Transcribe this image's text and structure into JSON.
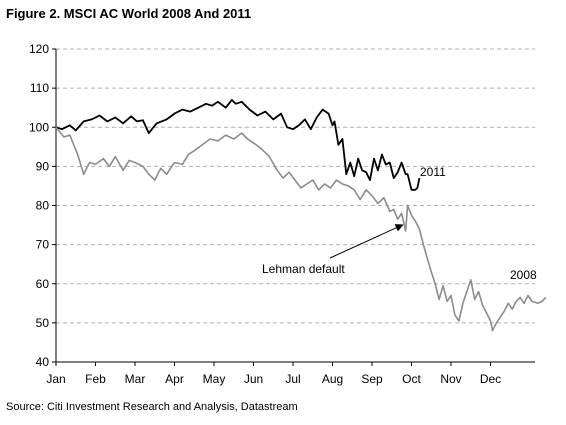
{
  "figure": {
    "title": "Figure 2. MSCI AC World 2008 And 2011",
    "source": "Source: Citi Investment Research and Analysis, Datastream"
  },
  "chart_data": {
    "type": "line",
    "title": "Figure 2. MSCI AC World 2008 And 2011",
    "xlabel": "",
    "ylabel": "",
    "x_unit": "months (Jan = 0)",
    "xlim": [
      0,
      12
    ],
    "ylim": [
      40,
      120
    ],
    "yticks": [
      40,
      50,
      60,
      70,
      80,
      90,
      100,
      110,
      120
    ],
    "xtick_labels": [
      "Jan",
      "Feb",
      "Mar",
      "Apr",
      "May",
      "Jun",
      "Jul",
      "Aug",
      "Sep",
      "Oct",
      "Nov",
      "Dec"
    ],
    "grid": "horizontal dashed",
    "legend": "none (direct labels)",
    "series": [
      {
        "name": "2011",
        "color": "#000000",
        "points": [
          [
            0.0,
            100.0
          ],
          [
            0.15,
            99.5
          ],
          [
            0.35,
            100.5
          ],
          [
            0.5,
            99.2
          ],
          [
            0.7,
            101.5
          ],
          [
            0.9,
            102.0
          ],
          [
            1.1,
            103.0
          ],
          [
            1.3,
            101.5
          ],
          [
            1.5,
            102.5
          ],
          [
            1.7,
            101.0
          ],
          [
            1.9,
            102.8
          ],
          [
            2.05,
            101.5
          ],
          [
            2.2,
            101.8
          ],
          [
            2.35,
            98.5
          ],
          [
            2.55,
            101.0
          ],
          [
            2.8,
            102.0
          ],
          [
            3.0,
            103.5
          ],
          [
            3.2,
            104.5
          ],
          [
            3.4,
            104.0
          ],
          [
            3.6,
            105.0
          ],
          [
            3.8,
            106.0
          ],
          [
            3.95,
            105.5
          ],
          [
            4.1,
            106.5
          ],
          [
            4.3,
            105.0
          ],
          [
            4.45,
            107.0
          ],
          [
            4.55,
            106.0
          ],
          [
            4.7,
            106.5
          ],
          [
            4.9,
            104.5
          ],
          [
            5.1,
            103.0
          ],
          [
            5.3,
            104.0
          ],
          [
            5.5,
            102.0
          ],
          [
            5.7,
            103.5
          ],
          [
            5.85,
            100.0
          ],
          [
            6.0,
            99.5
          ],
          [
            6.15,
            100.5
          ],
          [
            6.3,
            102.0
          ],
          [
            6.45,
            99.5
          ],
          [
            6.6,
            102.5
          ],
          [
            6.75,
            104.5
          ],
          [
            6.9,
            103.5
          ],
          [
            7.0,
            100.5
          ],
          [
            7.05,
            101.5
          ],
          [
            7.15,
            95.5
          ],
          [
            7.25,
            97.0
          ],
          [
            7.35,
            88.0
          ],
          [
            7.45,
            91.0
          ],
          [
            7.55,
            87.5
          ],
          [
            7.65,
            92.0
          ],
          [
            7.75,
            89.0
          ],
          [
            7.85,
            88.5
          ],
          [
            7.95,
            86.5
          ],
          [
            8.05,
            92.0
          ],
          [
            8.15,
            89.0
          ],
          [
            8.25,
            93.0
          ],
          [
            8.35,
            90.5
          ],
          [
            8.45,
            91.0
          ],
          [
            8.55,
            87.0
          ],
          [
            8.65,
            88.5
          ],
          [
            8.75,
            91.0
          ],
          [
            8.85,
            88.0
          ],
          [
            8.9,
            88.0
          ],
          [
            9.0,
            84.0
          ],
          [
            9.1,
            84.0
          ],
          [
            9.15,
            84.5
          ],
          [
            9.2,
            87.0
          ]
        ]
      },
      {
        "name": "2008",
        "color": "#8c8c8c",
        "points": [
          [
            0.0,
            100.0
          ],
          [
            0.2,
            97.5
          ],
          [
            0.35,
            98.0
          ],
          [
            0.55,
            93.0
          ],
          [
            0.7,
            88.0
          ],
          [
            0.85,
            91.0
          ],
          [
            1.0,
            90.5
          ],
          [
            1.2,
            92.0
          ],
          [
            1.35,
            90.0
          ],
          [
            1.5,
            92.5
          ],
          [
            1.7,
            89.0
          ],
          [
            1.85,
            91.5
          ],
          [
            2.0,
            91.0
          ],
          [
            2.2,
            90.0
          ],
          [
            2.35,
            88.0
          ],
          [
            2.5,
            86.5
          ],
          [
            2.65,
            89.5
          ],
          [
            2.8,
            88.0
          ],
          [
            3.0,
            91.0
          ],
          [
            3.2,
            90.5
          ],
          [
            3.35,
            93.0
          ],
          [
            3.5,
            94.0
          ],
          [
            3.7,
            95.5
          ],
          [
            3.9,
            97.0
          ],
          [
            4.1,
            96.5
          ],
          [
            4.3,
            98.0
          ],
          [
            4.5,
            97.0
          ],
          [
            4.7,
            98.5
          ],
          [
            4.85,
            97.0
          ],
          [
            5.0,
            96.0
          ],
          [
            5.2,
            94.5
          ],
          [
            5.4,
            92.5
          ],
          [
            5.6,
            89.0
          ],
          [
            5.75,
            87.0
          ],
          [
            5.9,
            88.5
          ],
          [
            6.05,
            86.5
          ],
          [
            6.2,
            84.5
          ],
          [
            6.35,
            85.5
          ],
          [
            6.5,
            86.5
          ],
          [
            6.65,
            84.0
          ],
          [
            6.8,
            85.5
          ],
          [
            6.95,
            84.5
          ],
          [
            7.1,
            86.5
          ],
          [
            7.25,
            85.5
          ],
          [
            7.4,
            85.0
          ],
          [
            7.55,
            84.0
          ],
          [
            7.7,
            81.5
          ],
          [
            7.85,
            84.0
          ],
          [
            8.0,
            82.5
          ],
          [
            8.15,
            80.5
          ],
          [
            8.3,
            82.0
          ],
          [
            8.45,
            78.5
          ],
          [
            8.55,
            79.0
          ],
          [
            8.65,
            76.5
          ],
          [
            8.75,
            78.0
          ],
          [
            8.85,
            73.5
          ],
          [
            8.9,
            80.0
          ],
          [
            9.0,
            77.5
          ],
          [
            9.1,
            76.0
          ],
          [
            9.2,
            74.0
          ],
          [
            9.3,
            70.0
          ],
          [
            9.4,
            66.5
          ],
          [
            9.5,
            63.0
          ],
          [
            9.6,
            60.0
          ],
          [
            9.7,
            56.0
          ],
          [
            9.8,
            59.5
          ],
          [
            9.9,
            55.5
          ],
          [
            10.0,
            57.0
          ],
          [
            10.1,
            52.0
          ],
          [
            10.2,
            50.5
          ],
          [
            10.3,
            55.0
          ],
          [
            10.4,
            58.0
          ],
          [
            10.5,
            61.0
          ],
          [
            10.6,
            56.0
          ],
          [
            10.7,
            58.0
          ],
          [
            10.8,
            54.5
          ],
          [
            10.9,
            52.5
          ],
          [
            11.0,
            50.5
          ],
          [
            11.05,
            48.0
          ],
          [
            11.15,
            50.0
          ],
          [
            11.25,
            51.5
          ],
          [
            11.35,
            53.0
          ],
          [
            11.45,
            55.0
          ],
          [
            11.55,
            53.5
          ],
          [
            11.65,
            55.5
          ],
          [
            11.75,
            56.5
          ],
          [
            11.85,
            55.0
          ],
          [
            11.95,
            57.0
          ],
          [
            12.05,
            55.5
          ],
          [
            12.2,
            55.0
          ],
          [
            12.3,
            55.5
          ],
          [
            12.4,
            56.5
          ]
        ]
      }
    ],
    "series_labels": {
      "2011": "2011",
      "2008": "2008"
    },
    "annotations": [
      {
        "text": "Lehman default",
        "target_x": 8.85,
        "target_y": 73.5
      }
    ]
  }
}
